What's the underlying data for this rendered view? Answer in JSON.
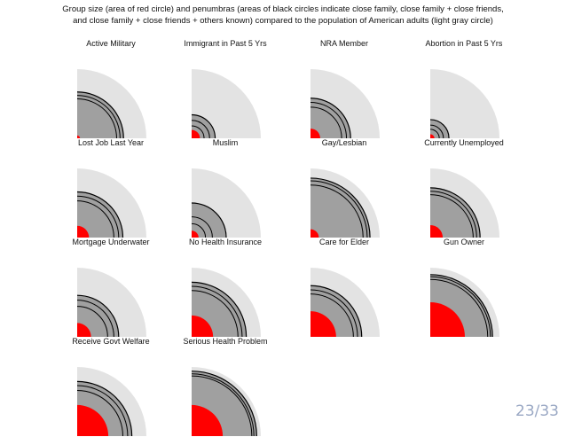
{
  "title_lines": [
    "Group size (area of red circle) and penumbras (areas of black circles indicate close family, close family + close friends,",
    "and close family + close friends + others known) compared to the population of American adults (light gray circle)"
  ],
  "page_number": "23/33",
  "colors": {
    "population": "#e3e3e3",
    "penumbra": "#a0a0a0",
    "group": "#ff0000",
    "ring": "#000000"
  },
  "chart_data": {
    "type": "nested-quarter-circles",
    "unit": "radius as fraction of population circle radius",
    "panels": [
      {
        "label": "Active Military",
        "group": 0.04,
        "rings": [
          0.57,
          0.62,
          0.67
        ]
      },
      {
        "label": "Immigrant in Past 5 Yrs",
        "group": 0.12,
        "rings": [
          0.18,
          0.26,
          0.34
        ]
      },
      {
        "label": "NRA Member",
        "group": 0.14,
        "rings": [
          0.45,
          0.52,
          0.58
        ]
      },
      {
        "label": "Abortion in Past 5 Yrs",
        "group": 0.06,
        "rings": [
          0.13,
          0.19,
          0.27
        ]
      },
      {
        "label": "Lost Job Last Year",
        "group": 0.17,
        "rings": [
          0.53,
          0.6,
          0.66
        ]
      },
      {
        "label": "Muslim",
        "group": 0.1,
        "rings": [
          0.2,
          0.3,
          0.5
        ]
      },
      {
        "label": "Gay/Lesbian",
        "group": 0.12,
        "rings": [
          0.76,
          0.82,
          0.86
        ]
      },
      {
        "label": "Currently Unemployed",
        "group": 0.18,
        "rings": [
          0.62,
          0.67,
          0.72
        ]
      },
      {
        "label": "Mortgage Underwater",
        "group": 0.2,
        "rings": [
          0.44,
          0.53,
          0.6
        ]
      },
      {
        "label": "No Health Insurance",
        "group": 0.31,
        "rings": [
          0.67,
          0.73,
          0.79
        ]
      },
      {
        "label": "Care for Elder",
        "group": 0.37,
        "rings": [
          0.62,
          0.68,
          0.74
        ]
      },
      {
        "label": "Gun Owner",
        "group": 0.5,
        "rings": [
          0.83,
          0.87,
          0.9
        ]
      },
      {
        "label": "Receive Govt Welfare",
        "group": 0.45,
        "rings": [
          0.66,
          0.73,
          0.79
        ]
      },
      {
        "label": "Serious Health Problem",
        "group": 0.45,
        "rings": [
          0.87,
          0.9,
          0.94
        ]
      }
    ]
  }
}
